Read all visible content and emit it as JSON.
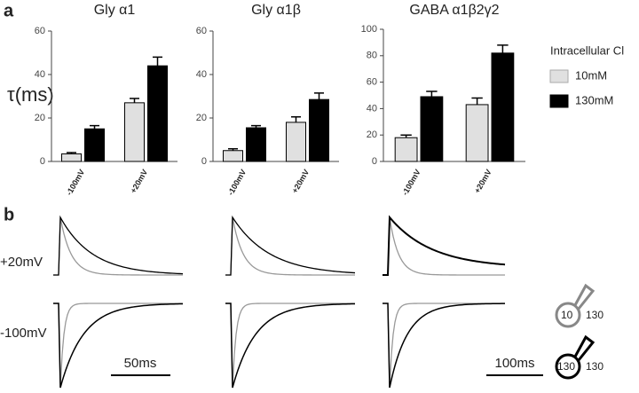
{
  "panel_labels": [
    "a",
    "b"
  ],
  "chart_data": [
    {
      "type": "bar",
      "title": "Gly α1",
      "ylabel": "τ(ms)",
      "categories": [
        "-100mV",
        "+20mV"
      ],
      "ylim": [
        0,
        60
      ],
      "yticks": [
        0,
        20,
        40,
        60
      ],
      "series": [
        {
          "name": "10mM",
          "color": "#e0e0e0",
          "values": [
            3.5,
            27
          ],
          "errors": [
            0.6,
            2
          ]
        },
        {
          "name": "130mM",
          "color": "#000000",
          "values": [
            15,
            44
          ],
          "errors": [
            1.5,
            4
          ]
        }
      ]
    },
    {
      "type": "bar",
      "title": "Gly α1β",
      "categories": [
        "-100mV",
        "+20mV"
      ],
      "ylim": [
        0,
        60
      ],
      "yticks": [
        0,
        20,
        40,
        60
      ],
      "series": [
        {
          "name": "10mM",
          "color": "#e0e0e0",
          "values": [
            5,
            18
          ],
          "errors": [
            0.8,
            2.5
          ]
        },
        {
          "name": "130mM",
          "color": "#000000",
          "values": [
            15.5,
            28.5
          ],
          "errors": [
            1,
            3
          ]
        }
      ]
    },
    {
      "type": "bar",
      "title": "GABA α1β2γ2",
      "categories": [
        "-100mV",
        "+20mV"
      ],
      "ylim": [
        0,
        100
      ],
      "yticks": [
        0,
        20,
        40,
        60,
        80,
        100
      ],
      "legend_title": "Intracellular Cl",
      "series": [
        {
          "name": "10mM",
          "color": "#e0e0e0",
          "values": [
            18,
            43
          ],
          "errors": [
            2,
            5
          ]
        },
        {
          "name": "130mM",
          "color": "#000000",
          "values": [
            49,
            82
          ],
          "errors": [
            4,
            6
          ]
        }
      ]
    }
  ],
  "traces": {
    "row_labels": [
      "+20mV",
      "-100mV"
    ],
    "scale_bars": [
      "50ms",
      "100ms"
    ],
    "pipettes": [
      [
        "10",
        "130"
      ],
      [
        "130",
        "130"
      ]
    ]
  }
}
